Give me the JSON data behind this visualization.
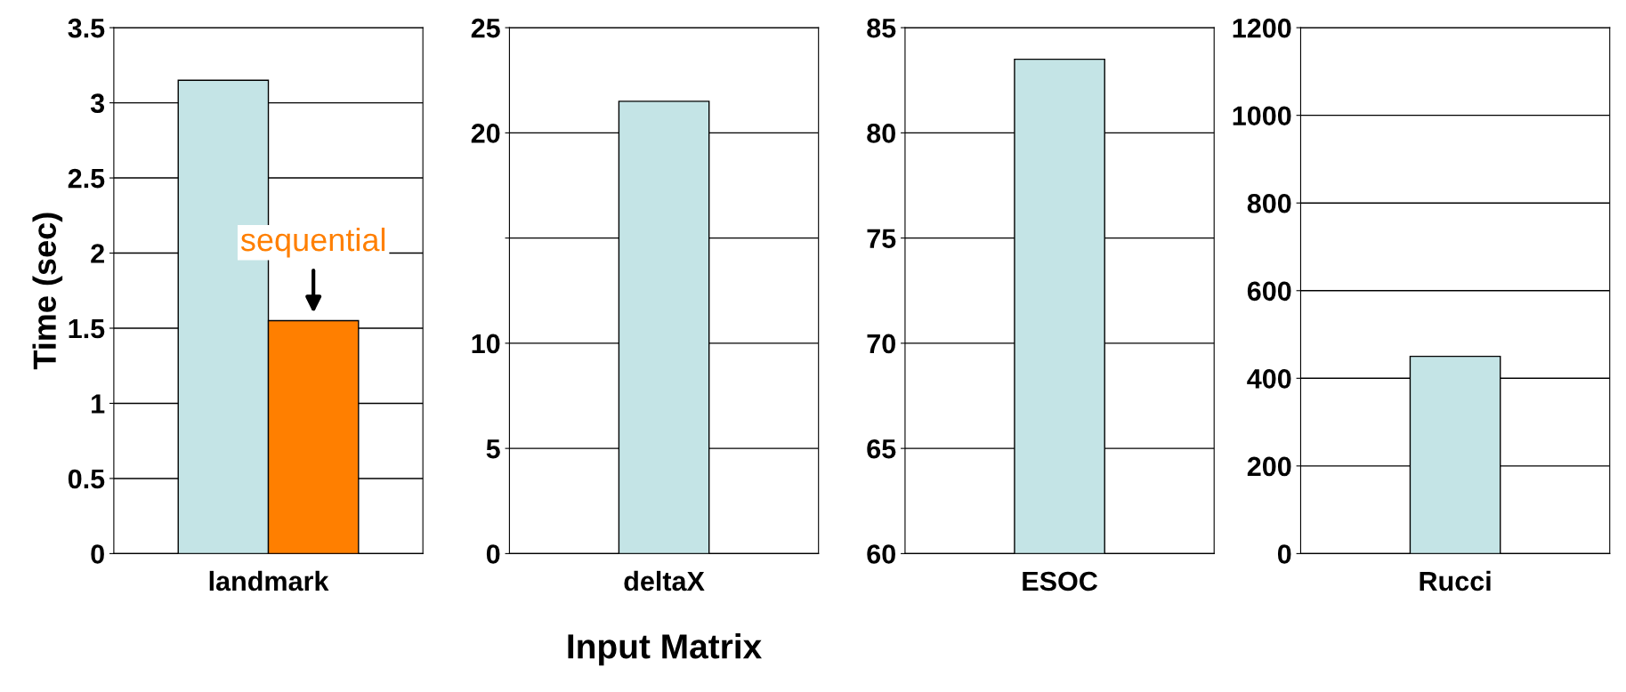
{
  "chart_data": [
    {
      "type": "bar",
      "categories": [
        "landmark"
      ],
      "ylabel": "Time (sec)",
      "ylim": [
        0,
        3.5
      ],
      "yticks": [
        0,
        0.5,
        1,
        1.5,
        2,
        2.5,
        3,
        3.5
      ],
      "grid": "y",
      "series": [
        {
          "color": "#c4e4e6",
          "values": [
            3.15
          ]
        },
        {
          "name": "sequential",
          "color": "#ff7f00",
          "values": [
            1.55
          ]
        }
      ]
    },
    {
      "type": "bar",
      "categories": [
        "deltaX"
      ],
      "xlabel": "Input Matrix",
      "ylim": [
        0,
        25
      ],
      "yticks": [
        0,
        5,
        10,
        {
          "value": 15,
          "label": null
        },
        20,
        25
      ],
      "grid": "y",
      "series": [
        {
          "color": "#c4e4e6",
          "values": [
            21.5
          ]
        }
      ]
    },
    {
      "type": "bar",
      "categories": [
        "ESOC"
      ],
      "ylim": [
        60,
        85
      ],
      "yticks": [
        60,
        65,
        70,
        75,
        80,
        85
      ],
      "grid": "y",
      "series": [
        {
          "color": "#c4e4e6",
          "values": [
            83.5
          ]
        }
      ]
    },
    {
      "type": "bar",
      "categories": [
        "Rucci"
      ],
      "ylim": [
        0,
        1200
      ],
      "yticks": [
        0,
        200,
        400,
        600,
        800,
        1000,
        1200
      ],
      "grid": "y",
      "series": [
        {
          "color": "#c4e4e6",
          "values": [
            450
          ]
        }
      ]
    }
  ]
}
